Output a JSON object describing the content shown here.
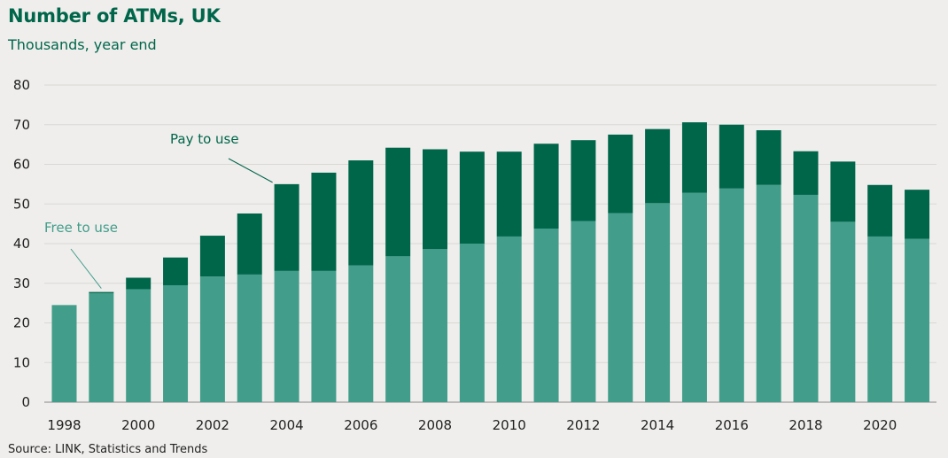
{
  "title": "Number of ATMs, UK",
  "subtitle": "Thousands, year end",
  "source": "Source:  LINK, Statistics and Trends",
  "colors": {
    "free": "#429e8a",
    "pay": "#00664a",
    "grid": "#d9d8d5",
    "text": "#222222"
  },
  "chart_data": {
    "type": "bar",
    "stacked": true,
    "x": [
      1998,
      1999,
      2000,
      2001,
      2002,
      2003,
      2004,
      2005,
      2006,
      2007,
      2008,
      2009,
      2010,
      2011,
      2012,
      2013,
      2014,
      2015,
      2016,
      2017,
      2018,
      2019,
      2020,
      2021
    ],
    "series": [
      {
        "name": "Free to use",
        "values": [
          24.5,
          27.5,
          28.5,
          29.5,
          31.7,
          32.2,
          33.1,
          33.1,
          34.5,
          36.8,
          38.6,
          40.0,
          41.8,
          43.8,
          45.7,
          47.7,
          50.2,
          52.8,
          53.9,
          54.8,
          52.3,
          45.5,
          41.8,
          41.2
        ]
      },
      {
        "name": "Pay to use",
        "values": [
          0,
          0.3,
          2.9,
          7.0,
          10.3,
          15.4,
          21.9,
          24.8,
          26.5,
          27.4,
          25.2,
          23.2,
          21.4,
          21.4,
          20.4,
          19.8,
          18.7,
          17.8,
          16.1,
          13.8,
          11.0,
          15.2,
          13.0,
          12.4
        ]
      }
    ],
    "ylim": [
      0,
      80
    ],
    "yticks": [
      0,
      10,
      20,
      30,
      40,
      50,
      60,
      70,
      80
    ],
    "xtick_labels": [
      "1998",
      "2000",
      "2002",
      "2004",
      "2006",
      "2008",
      "2010",
      "2012",
      "2014",
      "2016",
      "2018",
      "2020"
    ],
    "grid": true,
    "annotations": [
      {
        "text": "Free to use",
        "series": "Free to use",
        "pointer_year": 1999
      },
      {
        "text": "Pay to use",
        "series": "Pay to use",
        "pointer_year": 2004
      }
    ]
  }
}
